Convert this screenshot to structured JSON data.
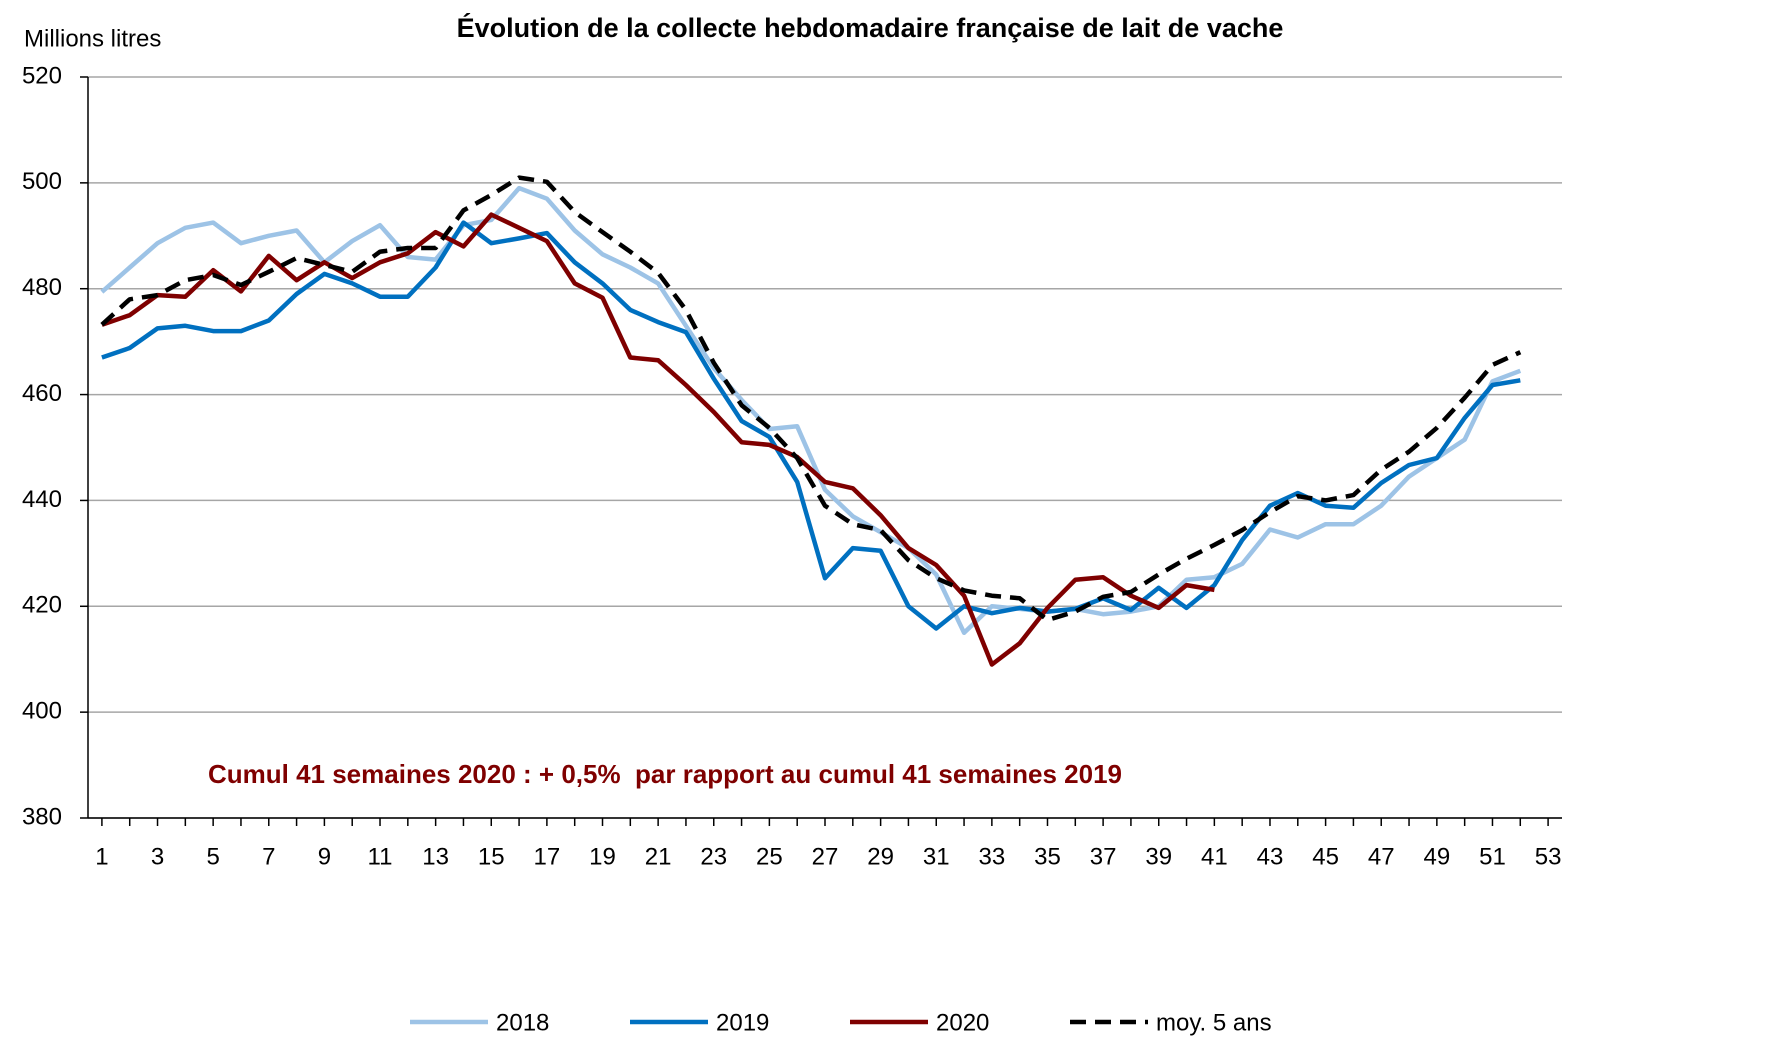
{
  "chart_data": {
    "type": "line",
    "title": "Évolution de la collecte hebdomadaire française de lait de vache",
    "y_axis_label": "Millions litres",
    "annotation": "Cumul 41 semaines 2020 : + 0,5%  par rapport au cumul 41 semaines 2019",
    "annotation_color": "#7f0000",
    "categories": [
      "1",
      null,
      "3",
      null,
      "5",
      null,
      "7",
      null,
      "9",
      null,
      "11",
      null,
      "13",
      null,
      "15",
      null,
      "17",
      null,
      "19",
      null,
      "21",
      null,
      "23",
      null,
      "25",
      null,
      "27",
      null,
      "29",
      null,
      "31",
      null,
      "33",
      null,
      "35",
      null,
      "37",
      null,
      "39",
      null,
      "41",
      null,
      "43",
      null,
      "45",
      null,
      "47",
      null,
      "49",
      null,
      "51",
      null,
      "53"
    ],
    "ylim": [
      380,
      520
    ],
    "yticks": [
      380,
      400,
      420,
      440,
      460,
      480,
      500,
      520
    ],
    "grid": true,
    "legend": "bottom",
    "series": [
      {
        "name": "2018",
        "color": "#9dc3e6",
        "dashed": false,
        "values": [
          479.4,
          484,
          488.6,
          491.5,
          492.5,
          488.6,
          490,
          491,
          485,
          489,
          492,
          486,
          485.5,
          492,
          493,
          499,
          497,
          491,
          486.5,
          484,
          481,
          473,
          465,
          459,
          453.5,
          454,
          442,
          437,
          434,
          431,
          426,
          415,
          420,
          419.5,
          419,
          419.5,
          418.5,
          419,
          420,
          425,
          425.5,
          428,
          434.5,
          433,
          435.5,
          435.5,
          439,
          444.5,
          448,
          451.5,
          462.5,
          464.5,
          null
        ]
      },
      {
        "name": "2019",
        "color": "#0070c0",
        "dashed": false,
        "values": [
          467,
          468.8,
          472.5,
          473,
          472,
          472,
          474,
          479,
          482.8,
          481,
          478.5,
          478.5,
          484,
          492.5,
          488.6,
          489.5,
          490.5,
          485,
          481,
          476,
          473.7,
          471.8,
          463,
          455,
          452,
          443.5,
          425.3,
          431,
          430.5,
          420,
          415.8,
          420,
          418.7,
          419.7,
          419,
          419.5,
          421.5,
          419.3,
          423.5,
          419.7,
          424,
          432.5,
          439,
          441.4,
          439,
          438.6,
          443.3,
          446.7,
          448,
          455.6,
          461.8,
          462.7,
          null
        ]
      },
      {
        "name": "2020",
        "color": "#7f0000",
        "dashed": false,
        "values": [
          473.2,
          475,
          478.8,
          478.5,
          483.5,
          479.5,
          486.2,
          481.6,
          485,
          482,
          485,
          486.7,
          490.7,
          488,
          494,
          491.5,
          489,
          481,
          478.3,
          467,
          466.5,
          461.8,
          456.7,
          451,
          450.5,
          448.2,
          443.5,
          442.3,
          437.2,
          431,
          427.8,
          422,
          409,
          413,
          419.7,
          425,
          425.5,
          422,
          419.7,
          424,
          423.1,
          null,
          null,
          null,
          null,
          null,
          null,
          null,
          null,
          null,
          null,
          null,
          null
        ]
      },
      {
        "name": "moy. 5 ans",
        "color": "#000000",
        "dashed": true,
        "values": [
          473.2,
          478,
          478.8,
          481.6,
          482.6,
          480.7,
          483.2,
          485.8,
          484.5,
          483.2,
          487,
          487.7,
          487.7,
          494.8,
          497.7,
          501,
          500.2,
          494.5,
          490.7,
          487,
          483,
          476,
          466,
          458,
          453.7,
          448,
          439,
          435.5,
          434.4,
          428.7,
          425.3,
          423,
          422,
          421.5,
          417.4,
          419,
          421.8,
          422.7,
          426,
          429,
          431.6,
          434.4,
          437.8,
          440.8,
          440,
          441,
          445.8,
          449.2,
          453.7,
          459.4,
          465.6,
          468,
          null
        ]
      }
    ]
  }
}
